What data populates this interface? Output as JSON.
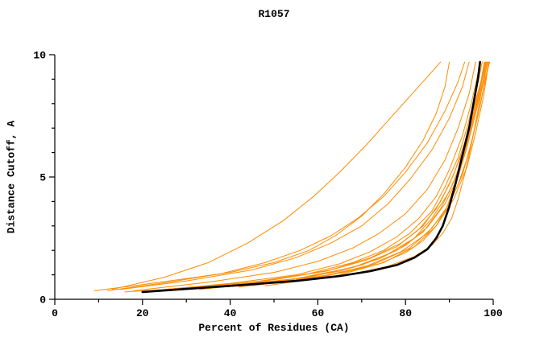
{
  "chart_data": {
    "type": "line",
    "title": "R1057",
    "xlabel": "Percent of Residues (CA)",
    "ylabel": "Distance Cutoff, A",
    "xlim": [
      0,
      100
    ],
    "ylim": [
      0,
      10
    ],
    "x_major_ticks": [
      0,
      20,
      40,
      60,
      80,
      100
    ],
    "x_minor_step": 10,
    "y_major_ticks": [
      0,
      5,
      10
    ],
    "y_minor_step": 1,
    "grid": false,
    "legend": "none",
    "line_color": "#ff8c00",
    "highlight_color": "#000000",
    "axis_color": "#000000",
    "series": [
      {
        "name": "model-01",
        "color": "#ff8c00",
        "width": 1,
        "points": [
          [
            9,
            0.35
          ],
          [
            20,
            0.6
          ],
          [
            30,
            0.85
          ],
          [
            40,
            1.1
          ],
          [
            50,
            1.5
          ],
          [
            58,
            2.0
          ],
          [
            64,
            2.6
          ],
          [
            70,
            3.4
          ],
          [
            75,
            4.3
          ],
          [
            80,
            5.4
          ],
          [
            84,
            6.5
          ],
          [
            87,
            7.6
          ],
          [
            89,
            8.7
          ],
          [
            90,
            9.7
          ]
        ]
      },
      {
        "name": "model-02",
        "color": "#ff8c00",
        "width": 1,
        "points": [
          [
            13,
            0.4
          ],
          [
            25,
            0.9
          ],
          [
            35,
            1.5
          ],
          [
            44,
            2.3
          ],
          [
            52,
            3.2
          ],
          [
            59,
            4.2
          ],
          [
            65,
            5.2
          ],
          [
            71,
            6.3
          ],
          [
            76,
            7.3
          ],
          [
            81,
            8.3
          ],
          [
            85,
            9.1
          ],
          [
            88,
            9.7
          ]
        ]
      },
      {
        "name": "model-03",
        "color": "#ff8c00",
        "width": 1,
        "points": [
          [
            12,
            0.35
          ],
          [
            26,
            0.7
          ],
          [
            38,
            1.05
          ],
          [
            48,
            1.5
          ],
          [
            56,
            2.0
          ],
          [
            63,
            2.6
          ],
          [
            69,
            3.3
          ],
          [
            75,
            4.2
          ],
          [
            80,
            5.2
          ],
          [
            85,
            6.4
          ],
          [
            89,
            7.7
          ],
          [
            92,
            8.9
          ],
          [
            93.5,
            9.7
          ]
        ]
      },
      {
        "name": "model-04",
        "color": "#ff8c00",
        "width": 1,
        "points": [
          [
            15,
            0.4
          ],
          [
            30,
            0.75
          ],
          [
            45,
            1.2
          ],
          [
            55,
            1.7
          ],
          [
            63,
            2.3
          ],
          [
            70,
            3.0
          ],
          [
            76,
            3.9
          ],
          [
            81,
            4.9
          ],
          [
            86,
            6.1
          ],
          [
            90,
            7.4
          ],
          [
            93,
            8.7
          ],
          [
            94.5,
            9.7
          ]
        ]
      },
      {
        "name": "model-05",
        "color": "#ff8c00",
        "width": 1,
        "points": [
          [
            18,
            0.35
          ],
          [
            35,
            0.7
          ],
          [
            50,
            1.1
          ],
          [
            60,
            1.55
          ],
          [
            68,
            2.1
          ],
          [
            74,
            2.7
          ],
          [
            80,
            3.5
          ],
          [
            85,
            4.5
          ],
          [
            89,
            5.7
          ],
          [
            92,
            7.0
          ],
          [
            94.5,
            8.4
          ],
          [
            96,
            9.7
          ]
        ]
      },
      {
        "name": "model-06",
        "color": "#ff8c00",
        "width": 1,
        "points": [
          [
            22,
            0.35
          ],
          [
            40,
            0.65
          ],
          [
            55,
            1.0
          ],
          [
            65,
            1.45
          ],
          [
            72,
            1.95
          ],
          [
            78,
            2.55
          ],
          [
            83,
            3.3
          ],
          [
            87,
            4.2
          ],
          [
            90,
            5.3
          ],
          [
            93,
            6.7
          ],
          [
            95,
            8.0
          ],
          [
            96.5,
            9.2
          ],
          [
            97,
            9.7
          ]
        ]
      },
      {
        "name": "model-07",
        "color": "#ff8c00",
        "width": 1,
        "points": [
          [
            25,
            0.4
          ],
          [
            45,
            0.7
          ],
          [
            58,
            1.05
          ],
          [
            68,
            1.5
          ],
          [
            75,
            2.0
          ],
          [
            81,
            2.7
          ],
          [
            86,
            3.6
          ],
          [
            89,
            4.6
          ],
          [
            92,
            5.8
          ],
          [
            94,
            7.0
          ],
          [
            96,
            8.4
          ],
          [
            97.5,
            9.7
          ]
        ]
      },
      {
        "name": "model-08",
        "color": "#ff8c00",
        "width": 1,
        "points": [
          [
            28,
            0.4
          ],
          [
            48,
            0.75
          ],
          [
            62,
            1.15
          ],
          [
            71,
            1.6
          ],
          [
            78,
            2.15
          ],
          [
            83,
            2.85
          ],
          [
            87,
            3.7
          ],
          [
            90,
            4.7
          ],
          [
            93,
            6.0
          ],
          [
            95,
            7.3
          ],
          [
            97,
            8.7
          ],
          [
            98,
            9.7
          ]
        ]
      },
      {
        "name": "model-09",
        "color": "#ff8c00",
        "width": 1,
        "points": [
          [
            30,
            0.45
          ],
          [
            50,
            0.8
          ],
          [
            63,
            1.2
          ],
          [
            72,
            1.7
          ],
          [
            79,
            2.3
          ],
          [
            84,
            3.0
          ],
          [
            88,
            4.0
          ],
          [
            91,
            5.1
          ],
          [
            93.5,
            6.4
          ],
          [
            95.5,
            7.8
          ],
          [
            97.5,
            9.1
          ],
          [
            98.2,
            9.7
          ]
        ]
      },
      {
        "name": "model-10",
        "color": "#ff8c00",
        "width": 1,
        "points": [
          [
            33,
            0.4
          ],
          [
            52,
            0.75
          ],
          [
            65,
            1.15
          ],
          [
            74,
            1.65
          ],
          [
            80,
            2.2
          ],
          [
            85,
            2.95
          ],
          [
            89,
            3.9
          ],
          [
            92,
            5.0
          ],
          [
            94,
            6.2
          ],
          [
            96,
            7.6
          ],
          [
            98,
            9.0
          ],
          [
            98.6,
            9.7
          ]
        ]
      },
      {
        "name": "model-11",
        "color": "#ff8c00",
        "width": 1,
        "points": [
          [
            35,
            0.45
          ],
          [
            55,
            0.85
          ],
          [
            68,
            1.3
          ],
          [
            76,
            1.85
          ],
          [
            82,
            2.5
          ],
          [
            86,
            3.3
          ],
          [
            90,
            4.4
          ],
          [
            92.5,
            5.5
          ],
          [
            94.5,
            6.8
          ],
          [
            96.5,
            8.2
          ],
          [
            98.4,
            9.7
          ]
        ]
      },
      {
        "name": "model-12",
        "color": "#ff8c00",
        "width": 1,
        "points": [
          [
            38,
            0.5
          ],
          [
            58,
            0.9
          ],
          [
            70,
            1.4
          ],
          [
            78,
            2.0
          ],
          [
            84,
            2.75
          ],
          [
            88,
            3.7
          ],
          [
            91,
            4.8
          ],
          [
            93.5,
            6.0
          ],
          [
            95.5,
            7.4
          ],
          [
            97.5,
            8.8
          ],
          [
            98.8,
            9.7
          ]
        ]
      },
      {
        "name": "model-13",
        "color": "#ff8c00",
        "width": 1,
        "points": [
          [
            42,
            0.5
          ],
          [
            60,
            0.9
          ],
          [
            71,
            1.35
          ],
          [
            79,
            1.95
          ],
          [
            85,
            2.7
          ],
          [
            89,
            3.6
          ],
          [
            92,
            4.7
          ],
          [
            94.5,
            6.0
          ],
          [
            96.5,
            7.5
          ],
          [
            98.2,
            9.0
          ],
          [
            99,
            9.7
          ]
        ]
      },
      {
        "name": "model-14",
        "color": "#ff8c00",
        "width": 1,
        "points": [
          [
            45,
            0.55
          ],
          [
            62,
            0.95
          ],
          [
            73,
            1.45
          ],
          [
            81,
            2.1
          ],
          [
            86,
            2.9
          ],
          [
            90,
            3.9
          ],
          [
            93,
            5.1
          ],
          [
            95,
            6.4
          ],
          [
            97,
            7.9
          ],
          [
            98.6,
            9.3
          ],
          [
            99.2,
            9.7
          ]
        ]
      },
      {
        "name": "model-15",
        "color": "#ff8c00",
        "width": 1,
        "points": [
          [
            48,
            0.55
          ],
          [
            64,
            0.95
          ],
          [
            75,
            1.5
          ],
          [
            82,
            2.15
          ],
          [
            87,
            3.0
          ],
          [
            91,
            4.1
          ],
          [
            94,
            5.4
          ],
          [
            96,
            6.8
          ],
          [
            97.8,
            8.3
          ],
          [
            99,
            9.7
          ]
        ]
      },
      {
        "name": "model-16",
        "color": "#ff8c00",
        "width": 1,
        "points": [
          [
            20,
            0.3
          ],
          [
            42,
            0.55
          ],
          [
            58,
            0.8
          ],
          [
            68,
            1.05
          ],
          [
            76,
            1.35
          ],
          [
            82,
            1.75
          ],
          [
            86,
            2.2
          ],
          [
            88.5,
            2.7
          ],
          [
            90.5,
            3.3
          ],
          [
            92,
            4.1
          ],
          [
            93.5,
            5.1
          ],
          [
            95,
            6.3
          ],
          [
            96.5,
            7.7
          ],
          [
            97.8,
            9.0
          ],
          [
            98.4,
            9.7
          ]
        ]
      },
      {
        "name": "model-17",
        "color": "#ff8c00",
        "width": 1,
        "points": [
          [
            16,
            0.3
          ],
          [
            38,
            0.55
          ],
          [
            55,
            0.8
          ],
          [
            66,
            1.1
          ],
          [
            74,
            1.45
          ],
          [
            80,
            1.9
          ],
          [
            84,
            2.4
          ],
          [
            87,
            3.0
          ],
          [
            89.5,
            3.8
          ],
          [
            91.5,
            4.8
          ],
          [
            93.5,
            6.0
          ],
          [
            95.5,
            7.4
          ],
          [
            97.2,
            8.8
          ],
          [
            98,
            9.7
          ]
        ]
      },
      {
        "name": "consensus",
        "color": "#000000",
        "width": 2.6,
        "points": [
          [
            20,
            0.3
          ],
          [
            40,
            0.55
          ],
          [
            55,
            0.75
          ],
          [
            65,
            0.95
          ],
          [
            72,
            1.15
          ],
          [
            78,
            1.4
          ],
          [
            82,
            1.7
          ],
          [
            85,
            2.05
          ],
          [
            87,
            2.5
          ],
          [
            88.5,
            3.0
          ],
          [
            90,
            3.8
          ],
          [
            91.5,
            4.8
          ],
          [
            93,
            5.9
          ],
          [
            94.5,
            7.0
          ],
          [
            95.5,
            8.0
          ],
          [
            96.5,
            9.0
          ],
          [
            97,
            9.7
          ]
        ]
      }
    ]
  }
}
